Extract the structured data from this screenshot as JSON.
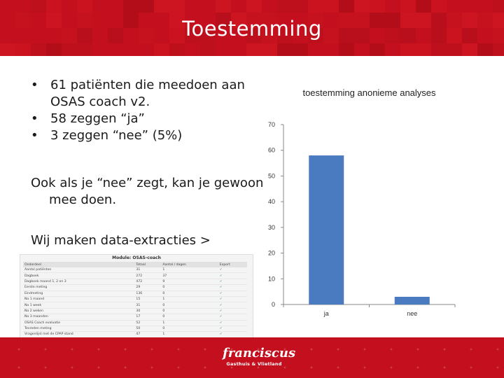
{
  "slide": {
    "title": "Toestemming",
    "bullets": [
      "61 patiënten die meedoen aan OSAS coach v2.",
      "58 zeggen “ja”",
      "3 zeggen “nee” (5%)"
    ],
    "paragraph_1": "Ook als je “nee” zegt, kan je gewoon mee doen.",
    "paragraph_2": "Wij maken data-extracties >"
  },
  "screenshot_table": {
    "title": "Module: OSAS-coach",
    "headers": [
      "Onderdeel",
      "Totaal",
      "Aantal / dagen",
      "Export"
    ],
    "rows": [
      [
        "Aantal patiënten",
        "31",
        "1",
        "✓"
      ],
      [
        "Dagboek",
        "272",
        "37",
        "✓"
      ],
      [
        "Dagboek maand 1, 2 en 3",
        "472",
        "9",
        "✓"
      ],
      [
        "Eerste meting",
        "29",
        "0",
        "✓"
      ],
      [
        "Eindmeting",
        "136",
        "0",
        "✓"
      ],
      [
        "Na 1 maand",
        "15",
        "1",
        "✓"
      ],
      [
        "Na 1 week",
        "31",
        "0",
        "✓"
      ],
      [
        "Na 2 weken",
        "30",
        "0",
        "✓"
      ],
      [
        "Na 3 maanden",
        "17",
        "0",
        "✓"
      ],
      [
        "OSAS Coach evaluatie",
        "52",
        "1",
        "✓"
      ],
      [
        "Tevreden meting",
        "50",
        "0",
        "✓"
      ],
      [
        "Vragenlijst met de CPAP stand",
        "47",
        "1",
        "✓"
      ]
    ]
  },
  "chart_data": {
    "type": "bar",
    "title": "toestemming anonieme analyses",
    "categories": [
      "ja",
      "nee"
    ],
    "values": [
      58,
      3
    ],
    "ylim": [
      0,
      70
    ],
    "yticks": [
      0,
      10,
      20,
      30,
      40,
      50,
      60,
      70
    ],
    "grid": false,
    "legend": "none",
    "bar_color": "#4a7bc1"
  },
  "footer": {
    "logo_word": "franciscus",
    "logo_sub": "Gasthuis & Vlietland"
  },
  "colors": {
    "brand_red": "#c4101e",
    "bar": "#4a7bc1"
  }
}
